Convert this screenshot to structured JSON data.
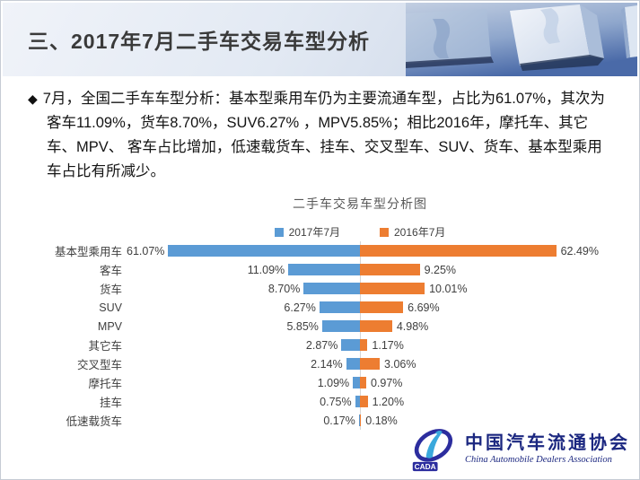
{
  "header": {
    "title": "三、2017年7月二手车交易车型分析"
  },
  "intro": {
    "bullet": "◆",
    "text": "7月，全国二手车车型分析：基本型乘用车仍为主要流通车型，占比为61.07%，其次为客车11.09%，货车8.70%，SUV6.27% ，MPV5.85%；相比2016年，摩托车、其它车、MPV、 客车占比增加，低速载货车、挂车、交叉型车、SUV、货车、基本型乘用车占比有所减少。"
  },
  "chart_data": {
    "type": "bar",
    "variant": "tornado-horizontal",
    "title": "二手车交易车型分析图",
    "categories": [
      "基本型乘用车",
      "客车",
      "货车",
      "SUV",
      "MPV",
      "其它车",
      "交叉型车",
      "摩托车",
      "挂车",
      "低速载货车"
    ],
    "series": [
      {
        "name": "2017年7月",
        "side": "left",
        "color": "#5B9BD5",
        "values": [
          61.07,
          11.09,
          8.7,
          6.27,
          5.85,
          2.87,
          2.14,
          1.09,
          0.75,
          0.17
        ],
        "labels": [
          "61.07%",
          "11.09%",
          "8.70%",
          "6.27%",
          "5.85%",
          "2.87%",
          "2.14%",
          "1.09%",
          "0.75%",
          "0.17%"
        ]
      },
      {
        "name": "2016年7月",
        "side": "right",
        "color": "#ED7D31",
        "values": [
          62.49,
          9.25,
          10.01,
          6.69,
          4.98,
          1.17,
          3.06,
          0.97,
          1.2,
          0.18
        ],
        "labels": [
          "62.49%",
          "9.25%",
          "10.01%",
          "6.69%",
          "4.98%",
          "1.17%",
          "3.06%",
          "0.97%",
          "1.20%",
          "0.18%"
        ]
      }
    ],
    "xlabel": "",
    "ylabel": "",
    "xlim_per_side": [
      0,
      31
    ],
    "grid": false,
    "center_axis": true,
    "legend_position": "top",
    "note": "values above the visible axis range are clipped at the plot edge"
  },
  "footer": {
    "logo_acronym": "CADA",
    "org_name_zh": "中国汽车流通协会",
    "org_name_en": "China Automobile Dealers Association"
  },
  "colors": {
    "series_2017": "#5B9BD5",
    "series_2016": "#ED7D31",
    "axis_line": "#d6d6d6",
    "logo_navy": "#1b2780"
  }
}
